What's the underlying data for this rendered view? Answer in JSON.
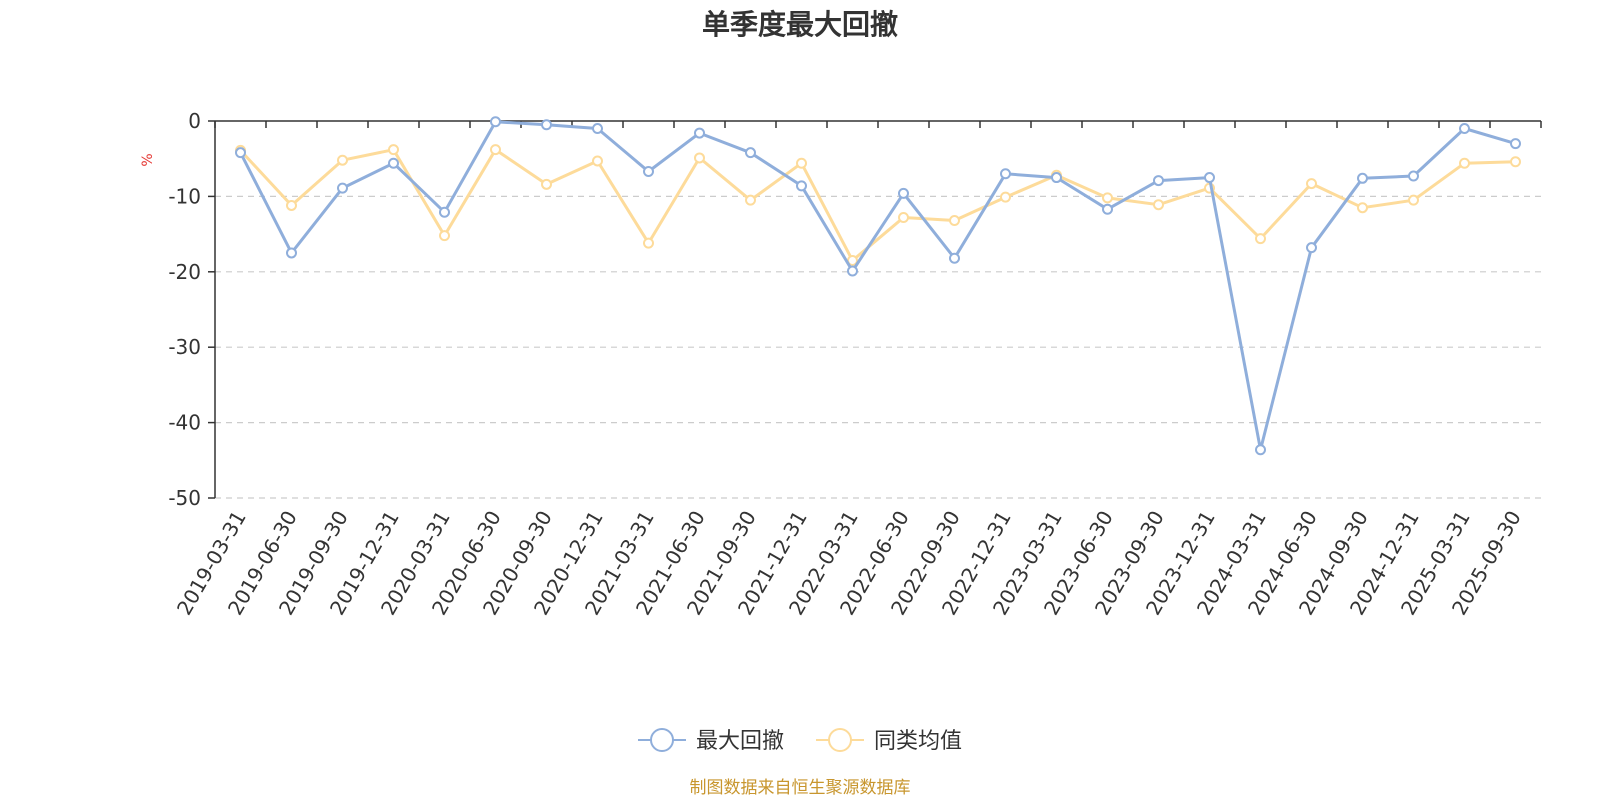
{
  "chart_data": {
    "type": "line",
    "title": "单季度最大回撤",
    "ylabel": "%",
    "ylim": [
      -50,
      0
    ],
    "yticks": [
      0,
      -10,
      -20,
      -30,
      -40,
      -50
    ],
    "grid": true,
    "legend_position": "bottom-center",
    "categories": [
      "2019-03-31",
      "2019-06-30",
      "2019-09-30",
      "2019-12-31",
      "2020-03-31",
      "2020-06-30",
      "2020-09-30",
      "2020-12-31",
      "2021-03-31",
      "2021-06-30",
      "2021-09-30",
      "2021-12-31",
      "2022-03-31",
      "2022-06-30",
      "2022-09-30",
      "2022-12-31",
      "2023-03-31",
      "2023-06-30",
      "2023-09-30",
      "2023-12-31",
      "2024-03-31",
      "2024-06-30",
      "2024-09-30",
      "2024-12-31",
      "2025-03-31",
      "2025-09-30"
    ],
    "series": [
      {
        "name": "最大回撤",
        "color": "#8faedb",
        "values": [
          -4.2,
          -17.5,
          -8.9,
          -5.6,
          -12.1,
          -0.1,
          -0.5,
          -1.0,
          -6.7,
          -1.6,
          -4.2,
          -8.6,
          -19.9,
          -9.6,
          -18.2,
          -7.0,
          -7.5,
          -11.7,
          -7.9,
          -7.5,
          -43.6,
          -16.8,
          -7.6,
          -7.3,
          -1.0,
          -3.0
        ]
      },
      {
        "name": "同类均值",
        "color": "#fddb9a",
        "values": [
          -3.9,
          -11.2,
          -5.2,
          -3.8,
          -15.2,
          -3.8,
          -8.4,
          -5.3,
          -16.2,
          -4.9,
          -10.5,
          -5.6,
          -18.5,
          -12.8,
          -13.2,
          -10.1,
          -7.2,
          -10.2,
          -11.1,
          -8.9,
          -15.6,
          -8.3,
          -11.5,
          -10.5,
          -5.6,
          -5.4
        ]
      }
    ]
  },
  "source_note": "制图数据来自恒生聚源数据库"
}
